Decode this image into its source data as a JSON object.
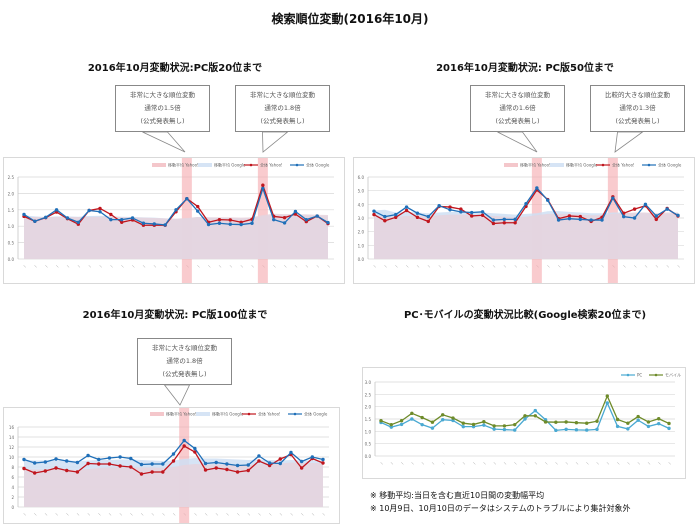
{
  "page": {
    "title": "検索順位変動(2016年10月)",
    "footnotes": [
      "※ 移動平均:当日を含む直近10日間の変動幅平均",
      "※ 10月9日、10月10日のデータはシステムのトラブルにより集計対象外"
    ]
  },
  "colors": {
    "yahoo": "#c0161e",
    "google": "#1f6fb8",
    "ma_yahoo": "#f4c7cb",
    "ma_google": "#d6e4f5",
    "highlight": "#f5a9ae",
    "pc": "#4aa9d2",
    "mobile": "#6e8b2a"
  },
  "charts": [
    {
      "title": "2016年10月変動状況:PC版20位まで",
      "legend": [
        "移動平均 Yahoo!",
        "移動平均 Google",
        "全体 Yahoo!",
        "全体 Google"
      ],
      "callouts": [
        {
          "line1": "非常に大きな順位変動",
          "line2": "通常の1.5倍",
          "line3": "(公式発表無し)"
        },
        {
          "line1": "非常に大きな順位変動",
          "line2": "通常の1.8倍",
          "line3": "(公式発表無し)"
        }
      ]
    },
    {
      "title": "2016年10月変動状況: PC版50位まで",
      "legend": [
        "移動平均 Yahoo!",
        "移動平均 Google",
        "全体 Yahoo!",
        "全体 Google"
      ],
      "callouts": [
        {
          "line1": "非常に大きな順位変動",
          "line2": "通常の1.6倍",
          "line3": "(公式発表無し)"
        },
        {
          "line1": "比較的大きな順位変動",
          "line2": "通常の1.3倍",
          "line3": "(公式発表無し)"
        }
      ]
    },
    {
      "title": "2016年10月変動状況: PC版100位まで",
      "legend": [
        "移動平均 Yahoo!",
        "移動平均 Google",
        "全体 Yahoo!",
        "全体 Google"
      ],
      "callouts": [
        {
          "line1": "非常に大きな順位変動",
          "line2": "通常の1.8倍",
          "line3": "(公式発表無し)"
        }
      ]
    },
    {
      "title": "PC･モバイルの変動状況比較(Google検索20位まで)",
      "legend": [
        "PC",
        "モバイル"
      ]
    }
  ],
  "chart_data": [
    {
      "type": "line",
      "title": "2016年10月変動状況:PC版20位まで",
      "ylim": [
        0,
        2.5
      ],
      "yticks": [
        0.0,
        0.5,
        1.0,
        1.5,
        2.0,
        2.5
      ],
      "highlight_indices": [
        15,
        22
      ],
      "series": [
        {
          "name": "全体 Yahoo!",
          "values": [
            1.3,
            1.15,
            1.26,
            1.43,
            1.23,
            1.06,
            1.48,
            1.54,
            1.36,
            1.12,
            1.19,
            1.03,
            1.03,
            1.03,
            1.44,
            1.84,
            1.6,
            1.12,
            1.2,
            1.19,
            1.12,
            1.21,
            2.25,
            1.3,
            1.26,
            1.37,
            1.14,
            1.31,
            1.08
          ]
        },
        {
          "name": "全体 Google",
          "values": [
            1.36,
            1.15,
            1.27,
            1.5,
            1.25,
            1.12,
            1.48,
            1.44,
            1.2,
            1.2,
            1.25,
            1.09,
            1.07,
            1.04,
            1.5,
            1.84,
            1.46,
            1.05,
            1.09,
            1.06,
            1.05,
            1.09,
            2.15,
            1.2,
            1.1,
            1.45,
            1.2,
            1.31,
            1.11
          ]
        },
        {
          "name": "移動平均 Yahoo!",
          "values": [
            1.28,
            1.28,
            1.28,
            1.28,
            1.28,
            1.28,
            1.28,
            1.29,
            1.3,
            1.28,
            1.27,
            1.26,
            1.25,
            1.24,
            1.23,
            1.25,
            1.28,
            1.27,
            1.27,
            1.27,
            1.26,
            1.27,
            1.34,
            1.38,
            1.37,
            1.37,
            1.36,
            1.35,
            1.34
          ]
        },
        {
          "name": "移動平均 Google",
          "values": [
            1.33,
            1.3,
            1.28,
            1.3,
            1.3,
            1.29,
            1.31,
            1.32,
            1.3,
            1.29,
            1.28,
            1.27,
            1.26,
            1.24,
            1.22,
            1.24,
            1.28,
            1.27,
            1.26,
            1.25,
            1.23,
            1.24,
            1.31,
            1.35,
            1.33,
            1.33,
            1.32,
            1.32,
            1.3
          ]
        }
      ]
    },
    {
      "type": "line",
      "title": "2016年10月変動状況: PC版50位まで",
      "ylim": [
        0,
        6
      ],
      "yticks": [
        0.0,
        1.0,
        2.0,
        3.0,
        4.0,
        5.0,
        6.0
      ],
      "highlight_indices": [
        15,
        22
      ],
      "series": [
        {
          "name": "全体 Yahoo!",
          "values": [
            3.25,
            2.8,
            3.05,
            3.55,
            3.05,
            2.75,
            3.85,
            3.8,
            3.65,
            3.15,
            3.2,
            2.6,
            2.65,
            2.65,
            3.85,
            5.05,
            4.35,
            2.95,
            3.15,
            3.1,
            2.75,
            3.05,
            4.55,
            3.35,
            3.65,
            3.9,
            2.9,
            3.7,
            3.15
          ]
        },
        {
          "name": "全体 Google",
          "values": [
            3.5,
            3.1,
            3.25,
            3.8,
            3.35,
            3.1,
            3.9,
            3.6,
            3.45,
            3.4,
            3.45,
            2.85,
            2.9,
            2.9,
            4.05,
            5.2,
            4.3,
            2.85,
            2.95,
            2.9,
            2.85,
            2.85,
            4.45,
            3.1,
            3.0,
            4.0,
            3.15,
            3.65,
            3.2
          ]
        },
        {
          "name": "移動平均 Yahoo!",
          "values": [
            3.15,
            3.1,
            3.1,
            3.15,
            3.15,
            3.1,
            3.2,
            3.25,
            3.25,
            3.2,
            3.2,
            3.15,
            3.1,
            3.05,
            3.1,
            3.2,
            3.3,
            3.3,
            3.3,
            3.25,
            3.2,
            3.2,
            3.3,
            3.35,
            3.4,
            3.4,
            3.35,
            3.4,
            3.4
          ]
        },
        {
          "name": "移動平均 Google",
          "values": [
            3.55,
            3.6,
            3.4,
            3.45,
            3.4,
            3.35,
            3.4,
            3.45,
            3.45,
            3.4,
            3.4,
            3.35,
            3.3,
            3.25,
            3.3,
            3.35,
            3.5,
            3.5,
            3.45,
            3.4,
            3.35,
            3.35,
            3.4,
            3.4,
            3.35,
            3.35,
            3.3,
            3.3,
            3.3
          ]
        }
      ]
    },
    {
      "type": "line",
      "title": "2016年10月変動状況: PC版100位まで",
      "ylim": [
        0,
        16
      ],
      "yticks": [
        0,
        2,
        4,
        6,
        8,
        10,
        12,
        14,
        16
      ],
      "highlight_indices": [
        15
      ],
      "series": [
        {
          "name": "全体 Yahoo!",
          "values": [
            7.7,
            6.8,
            7.2,
            7.8,
            7.3,
            7.0,
            8.7,
            8.6,
            8.6,
            8.2,
            8.0,
            6.6,
            7.0,
            7.0,
            9.2,
            12.2,
            11.0,
            7.4,
            7.8,
            7.5,
            7.0,
            7.3,
            9.2,
            8.3,
            9.6,
            10.5,
            7.8,
            9.7,
            8.8
          ]
        },
        {
          "name": "全体 Google",
          "values": [
            9.5,
            8.8,
            9.0,
            9.6,
            9.2,
            8.9,
            10.3,
            9.5,
            9.8,
            10.0,
            9.7,
            8.5,
            8.6,
            8.6,
            10.6,
            13.3,
            11.7,
            8.7,
            8.9,
            8.6,
            8.3,
            8.4,
            10.2,
            8.8,
            8.7,
            10.9,
            9.1,
            10.0,
            9.5
          ]
        },
        {
          "name": "移動平均 Yahoo!",
          "values": [
            7.6,
            7.5,
            7.5,
            7.6,
            7.5,
            7.4,
            7.6,
            7.8,
            7.9,
            7.9,
            7.9,
            7.9,
            7.9,
            7.8,
            8.0,
            8.4,
            8.6,
            8.5,
            8.5,
            8.5,
            8.4,
            8.4,
            8.6,
            8.6,
            8.7,
            8.9,
            8.8,
            8.8,
            8.8
          ]
        },
        {
          "name": "移動平均 Google",
          "values": [
            9.4,
            9.3,
            9.3,
            9.3,
            9.3,
            9.2,
            9.3,
            9.4,
            9.4,
            9.5,
            9.5,
            9.4,
            9.3,
            9.2,
            9.3,
            9.6,
            9.8,
            9.7,
            9.7,
            9.6,
            9.5,
            9.4,
            9.5,
            9.4,
            9.3,
            9.4,
            9.3,
            9.3,
            9.3
          ]
        }
      ]
    },
    {
      "type": "line",
      "title": "PC･モバイルの変動状況比較(Google検索20位まで)",
      "ylim": [
        0,
        3
      ],
      "yticks": [
        0.0,
        0.5,
        1.0,
        1.5,
        2.0,
        2.5,
        3.0
      ],
      "series": [
        {
          "name": "PC",
          "values": [
            1.36,
            1.17,
            1.28,
            1.5,
            1.27,
            1.13,
            1.47,
            1.44,
            1.19,
            1.19,
            1.25,
            1.09,
            1.07,
            1.05,
            1.5,
            1.84,
            1.47,
            1.04,
            1.08,
            1.06,
            1.05,
            1.08,
            2.15,
            1.2,
            1.1,
            1.45,
            1.2,
            1.31,
            1.12
          ]
        },
        {
          "name": "モバイル",
          "values": [
            1.43,
            1.27,
            1.43,
            1.73,
            1.56,
            1.37,
            1.67,
            1.54,
            1.33,
            1.28,
            1.39,
            1.22,
            1.22,
            1.27,
            1.63,
            1.63,
            1.38,
            1.37,
            1.38,
            1.35,
            1.33,
            1.41,
            2.43,
            1.48,
            1.33,
            1.6,
            1.38,
            1.51,
            1.32
          ]
        }
      ]
    }
  ]
}
